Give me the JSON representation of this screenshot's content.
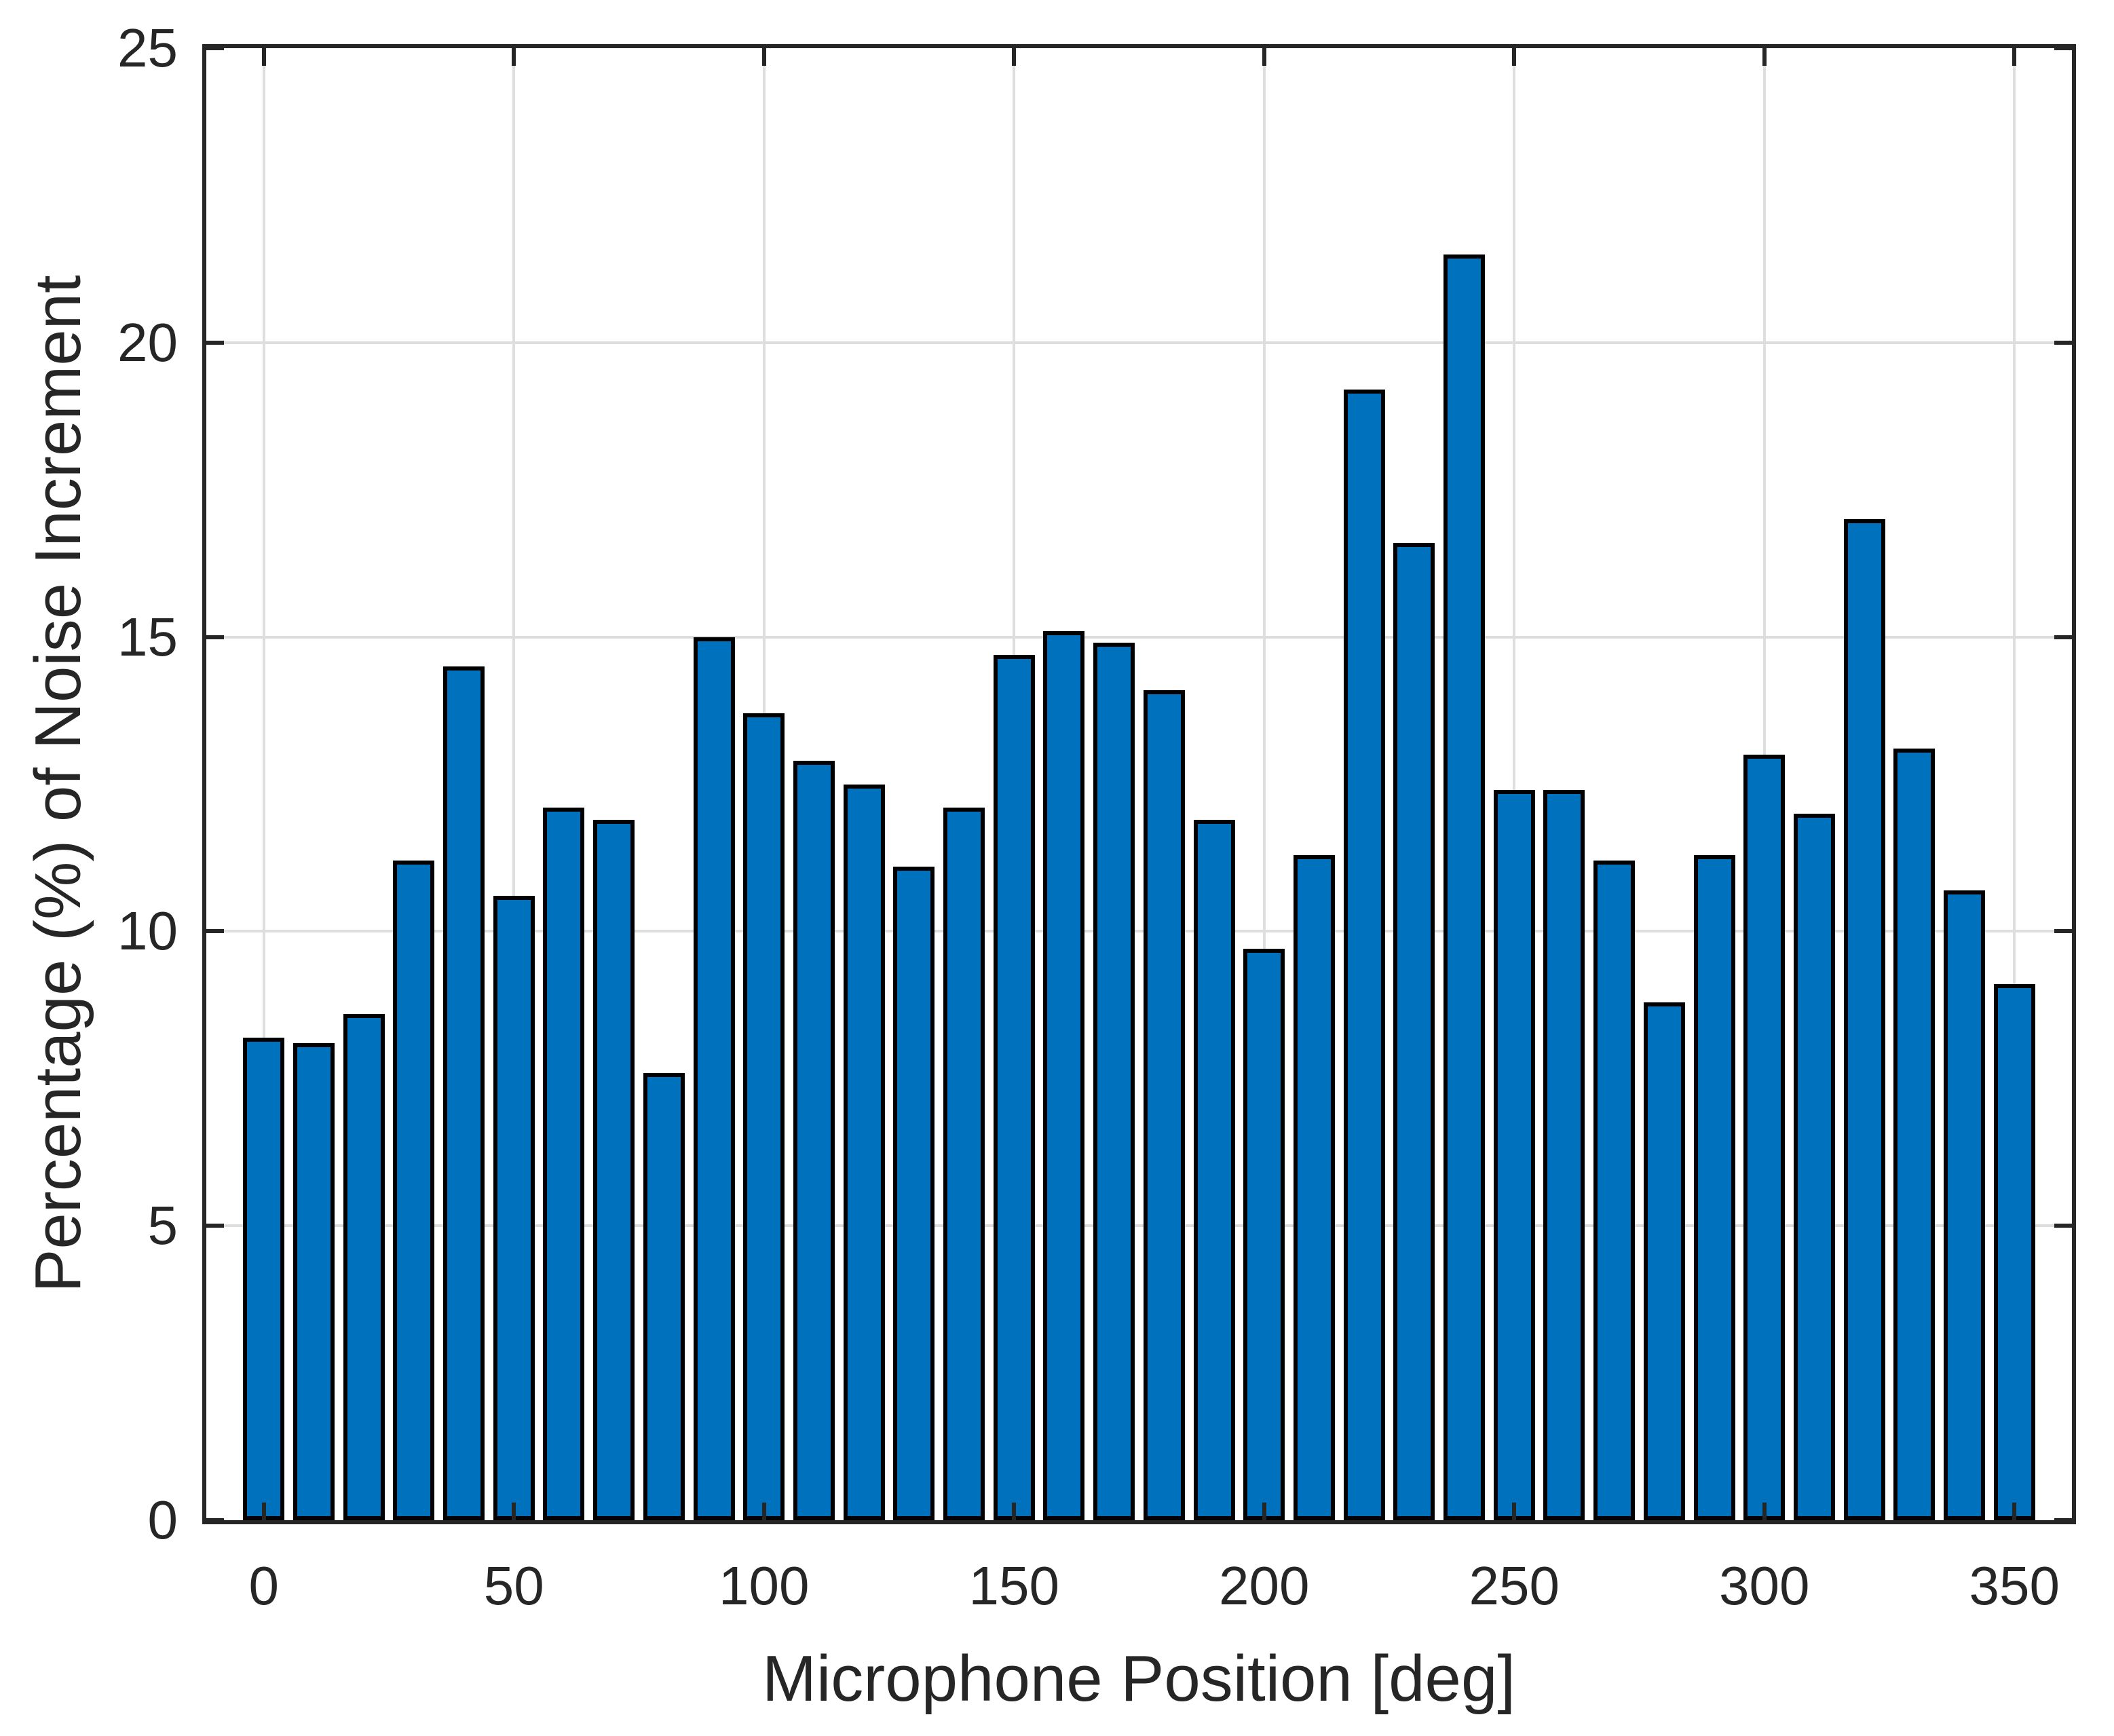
{
  "chart_data": {
    "type": "bar",
    "title": "",
    "xlabel": "Microphone Position [deg]",
    "ylabel": "Percentage (%) of Noise Increment",
    "categories": [
      0,
      10,
      20,
      30,
      40,
      50,
      60,
      70,
      80,
      90,
      100,
      110,
      120,
      130,
      140,
      150,
      160,
      170,
      180,
      190,
      200,
      210,
      220,
      230,
      240,
      250,
      260,
      270,
      280,
      290,
      300,
      310,
      320,
      330,
      340,
      350
    ],
    "values": [
      8.2,
      8.1,
      8.6,
      11.2,
      14.5,
      10.6,
      12.1,
      11.9,
      7.6,
      15.0,
      13.7,
      12.9,
      12.5,
      11.1,
      12.1,
      14.7,
      15.1,
      14.9,
      14.1,
      11.9,
      9.7,
      11.3,
      19.2,
      16.6,
      21.5,
      12.4,
      12.4,
      11.2,
      8.8,
      11.3,
      13.0,
      12.0,
      17.0,
      13.1,
      10.7,
      9.1
    ],
    "x_ticks": [
      0,
      50,
      100,
      150,
      200,
      250,
      300,
      350
    ],
    "y_ticks": [
      0,
      5,
      10,
      15,
      20,
      25
    ],
    "xlim": [
      -11.5,
      361.5
    ],
    "ylim": [
      0,
      25
    ],
    "grid": "on",
    "legend_position": "none",
    "colors": {
      "bar_fill": "#0072BD",
      "bar_edge": "#000000",
      "axis": "#262626",
      "grid": "#DEDEDE",
      "text": "#262626",
      "background": "#FFFFFF"
    }
  }
}
